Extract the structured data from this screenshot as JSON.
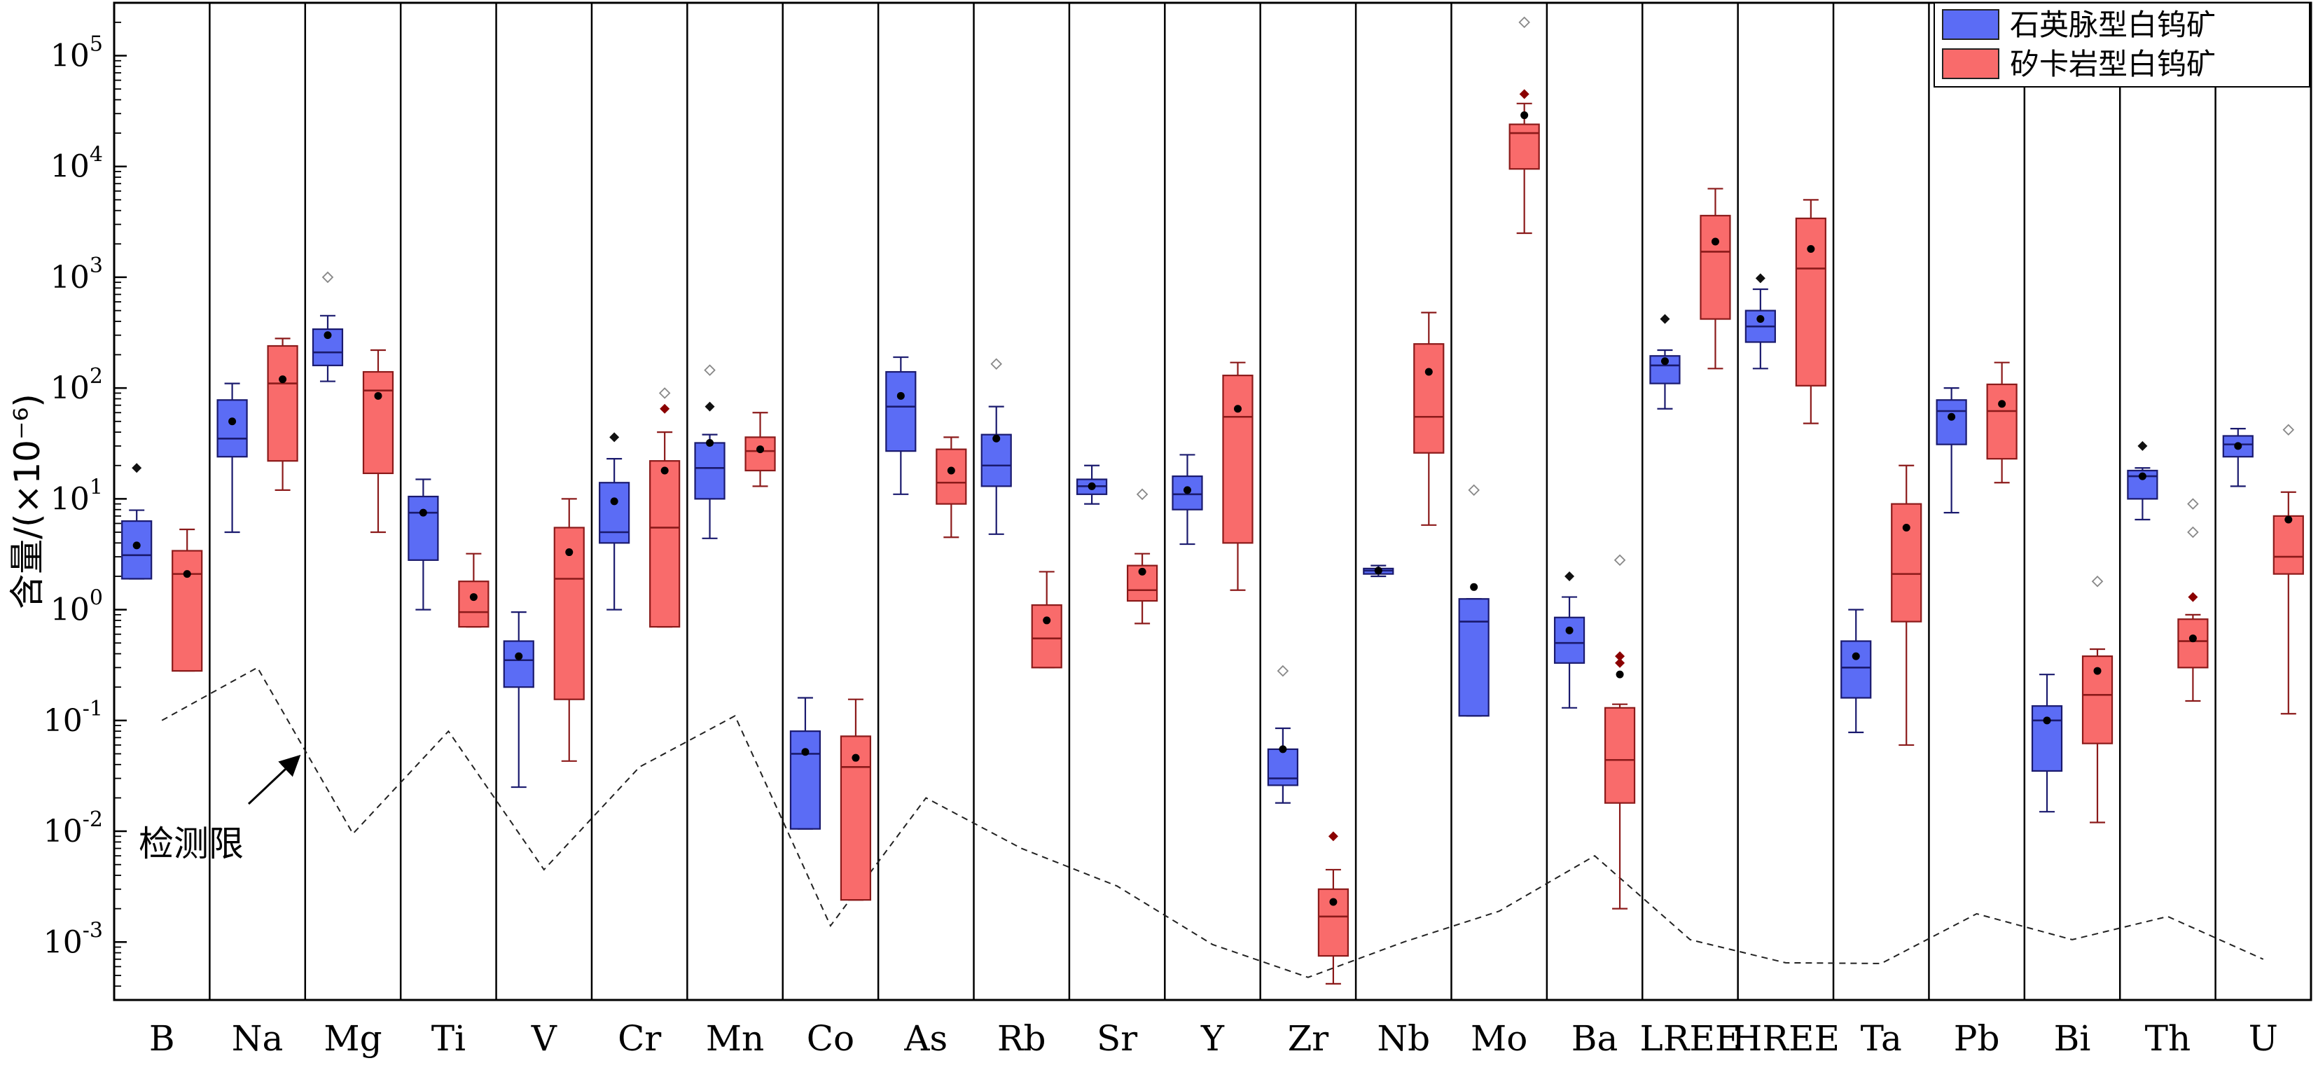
{
  "chart_data": {
    "type": "box",
    "ylabel": "含量/(×10⁻⁶)",
    "y_scale": "log",
    "ylim": [
      0.0003,
      300000
    ],
    "y_ticks": [
      0.001,
      0.01,
      0.1,
      1,
      10,
      100,
      1000,
      10000,
      100000
    ],
    "y_tick_labels": [
      {
        "base": "10",
        "exp": "-3"
      },
      {
        "base": "10",
        "exp": "-2"
      },
      {
        "base": "10",
        "exp": "-1"
      },
      {
        "base": "10",
        "exp": "0"
      },
      {
        "base": "10",
        "exp": "1"
      },
      {
        "base": "10",
        "exp": "2"
      },
      {
        "base": "10",
        "exp": "3"
      },
      {
        "base": "10",
        "exp": "4"
      },
      {
        "base": "10",
        "exp": "5"
      }
    ],
    "categories": [
      "B",
      "Na",
      "Mg",
      "Ti",
      "V",
      "Cr",
      "Mn",
      "Co",
      "As",
      "Rb",
      "Sr",
      "Y",
      "Zr",
      "Nb",
      "Mo",
      "Ba",
      "LREE",
      "HREE",
      "Ta",
      "Pb",
      "Bi",
      "Th",
      "U"
    ],
    "legend": {
      "placement": "top-right",
      "entries": [
        {
          "label": "石英脉型白钨矿",
          "color": "#5b6cf5"
        },
        {
          "label": "矽卡岩型白钨矿",
          "color": "#f96b6b"
        }
      ]
    },
    "colors": {
      "quartz_fill": "#5b6cf5",
      "quartz_line": "#1a1a6e",
      "skarn_fill": "#f96b6b",
      "skarn_line": "#8b1a1a",
      "outlier": "#888888",
      "skarn_mean_dark": "#8b0000"
    },
    "series": [
      {
        "name": "石英脉型白钨矿",
        "boxes": [
          {
            "category": "B",
            "min": 1.9,
            "q1": 1.9,
            "median": 3.1,
            "q3": 6.3,
            "max": 7.9,
            "mean": 3.8,
            "extreme_max": [
              19
            ]
          },
          {
            "category": "Na",
            "min": 5,
            "q1": 24,
            "median": 35,
            "q3": 78,
            "max": 110,
            "mean": 50,
            "extreme_max": []
          },
          {
            "category": "Mg",
            "min": 115,
            "q1": 160,
            "median": 210,
            "q3": 340,
            "max": 450,
            "mean": 300,
            "outliers": [
              1000
            ]
          },
          {
            "category": "Ti",
            "min": 1,
            "q1": 2.8,
            "median": 7.5,
            "q3": 10.5,
            "max": 15,
            "mean": 7.5,
            "outliers": []
          },
          {
            "category": "V",
            "min": 0.025,
            "q1": 0.2,
            "median": 0.35,
            "q3": 0.52,
            "max": 0.95,
            "mean": 0.38,
            "outliers": []
          },
          {
            "category": "Cr",
            "min": 1,
            "q1": 4,
            "median": 5,
            "q3": 14,
            "max": 23,
            "mean": 9.5,
            "extreme_max": [
              36
            ]
          },
          {
            "category": "Mn",
            "min": 4.4,
            "q1": 10,
            "median": 19,
            "q3": 32,
            "max": 38,
            "mean": 32,
            "extreme_max": [
              68
            ],
            "outliers": [
              145
            ]
          },
          {
            "category": "Co",
            "min": 0.0105,
            "q1": 0.0105,
            "median": 0.05,
            "q3": 0.08,
            "max": 0.16,
            "mean": 0.052,
            "outliers": []
          },
          {
            "category": "As",
            "min": 11,
            "q1": 27,
            "median": 68,
            "q3": 140,
            "max": 190,
            "mean": 85,
            "outliers": []
          },
          {
            "category": "Rb",
            "min": 4.8,
            "q1": 13,
            "median": 20,
            "q3": 38,
            "max": 68,
            "mean": 35,
            "outliers": [
              165
            ]
          },
          {
            "category": "Sr",
            "min": 9,
            "q1": 11,
            "median": 13,
            "q3": 15,
            "max": 20,
            "mean": 13,
            "outliers": []
          },
          {
            "category": "Y",
            "min": 3.9,
            "q1": 8,
            "median": 11,
            "q3": 16,
            "max": 25,
            "mean": 12,
            "outliers": []
          },
          {
            "category": "Zr",
            "min": 0.018,
            "q1": 0.026,
            "median": 0.03,
            "q3": 0.055,
            "max": 0.085,
            "mean": 0.055,
            "outliers": [
              0.28
            ]
          },
          {
            "category": "Nb",
            "min": 2,
            "q1": 2.1,
            "median": 2.25,
            "q3": 2.35,
            "max": 2.5,
            "mean": 2.25,
            "outliers": []
          },
          {
            "category": "Mo",
            "min": 0.11,
            "q1": 0.11,
            "median": 0.78,
            "q3": 1.25,
            "max": 1.25,
            "mean": 1.6,
            "outliers": [
              12
            ]
          },
          {
            "category": "Ba",
            "min": 0.13,
            "q1": 0.33,
            "median": 0.5,
            "q3": 0.85,
            "max": 1.3,
            "mean": 0.65,
            "extreme_max": [
              2
            ],
            "outliers": []
          },
          {
            "category": "LREE",
            "min": 65,
            "q1": 110,
            "median": 160,
            "q3": 195,
            "max": 220,
            "mean": 175,
            "extreme_max": [
              420
            ]
          },
          {
            "category": "HREE",
            "min": 150,
            "q1": 260,
            "median": 360,
            "q3": 500,
            "max": 780,
            "mean": 420,
            "extreme_max": [
              980
            ]
          },
          {
            "category": "Ta",
            "min": 0.078,
            "q1": 0.16,
            "median": 0.3,
            "q3": 0.52,
            "max": 1,
            "mean": 0.38,
            "outliers": []
          },
          {
            "category": "Pb",
            "min": 7.5,
            "q1": 31,
            "median": 62,
            "q3": 78,
            "max": 100,
            "mean": 55,
            "outliers": []
          },
          {
            "category": "Bi",
            "min": 0.015,
            "q1": 0.035,
            "median": 0.1,
            "q3": 0.135,
            "max": 0.26,
            "mean": 0.1,
            "outliers": []
          },
          {
            "category": "Th",
            "min": 6.5,
            "q1": 10,
            "median": 16,
            "q3": 18,
            "max": 19,
            "mean": 16,
            "extreme_max": [
              30
            ]
          },
          {
            "category": "U",
            "min": 13,
            "q1": 24,
            "median": 31,
            "q3": 37,
            "max": 43,
            "mean": 30,
            "outliers": []
          }
        ]
      },
      {
        "name": "矽卡岩型白钨矿",
        "boxes": [
          {
            "category": "B",
            "min": 0.28,
            "q1": 0.28,
            "median": 2.1,
            "q3": 3.4,
            "max": 5.3,
            "mean": 2.1,
            "outliers": []
          },
          {
            "category": "Na",
            "min": 12,
            "q1": 22,
            "median": 110,
            "q3": 240,
            "max": 280,
            "mean": 120,
            "outliers": []
          },
          {
            "category": "Mg",
            "min": 5,
            "q1": 17,
            "median": 95,
            "q3": 140,
            "max": 220,
            "mean": 85,
            "outliers": []
          },
          {
            "category": "Ti",
            "min": 0.7,
            "q1": 0.7,
            "median": 0.95,
            "q3": 1.8,
            "max": 3.2,
            "mean": 1.3,
            "outliers": []
          },
          {
            "category": "V",
            "min": 0.043,
            "q1": 0.155,
            "median": 1.9,
            "q3": 5.5,
            "max": 10,
            "mean": 3.3,
            "outliers": []
          },
          {
            "category": "Cr",
            "min": 0.7,
            "q1": 0.7,
            "median": 5.5,
            "q3": 22,
            "max": 40,
            "mean": 18,
            "extreme_max": [
              65
            ],
            "outliers": [
              90
            ]
          },
          {
            "category": "Mn",
            "min": 13,
            "q1": 18,
            "median": 27,
            "q3": 36,
            "max": 60,
            "mean": 28,
            "outliers": []
          },
          {
            "category": "Co",
            "min": 0.0024,
            "q1": 0.0024,
            "median": 0.038,
            "q3": 0.072,
            "max": 0.155,
            "mean": 0.046,
            "outliers": []
          },
          {
            "category": "As",
            "min": 4.5,
            "q1": 9,
            "median": 14,
            "q3": 28,
            "max": 36,
            "mean": 18,
            "outliers": []
          },
          {
            "category": "Rb",
            "min": 0.3,
            "q1": 0.3,
            "median": 0.55,
            "q3": 1.1,
            "max": 2.2,
            "mean": 0.8,
            "outliers": []
          },
          {
            "category": "Sr",
            "min": 0.75,
            "q1": 1.2,
            "median": 1.5,
            "q3": 2.5,
            "max": 3.2,
            "mean": 2.2,
            "outliers": [
              11
            ]
          },
          {
            "category": "Y",
            "min": 1.5,
            "q1": 4,
            "median": 55,
            "q3": 130,
            "max": 170,
            "mean": 65,
            "outliers": []
          },
          {
            "category": "Zr",
            "min": 0.00042,
            "q1": 0.00075,
            "median": 0.0017,
            "q3": 0.003,
            "max": 0.0045,
            "mean": 0.0023,
            "extreme_max": [
              0.009
            ]
          },
          {
            "category": "Nb",
            "min": 5.8,
            "q1": 26,
            "median": 55,
            "q3": 250,
            "max": 480,
            "mean": 140,
            "outliers": []
          },
          {
            "category": "Mo",
            "min": 2500,
            "q1": 9500,
            "median": 20000,
            "q3": 24000,
            "max": 37000,
            "mean": 29000,
            "extreme_max": [
              45000
            ],
            "outliers": [
              200000
            ]
          },
          {
            "category": "Ba",
            "min": 0.002,
            "q1": 0.018,
            "median": 0.044,
            "q3": 0.13,
            "max": 0.14,
            "mean": 0.26,
            "extreme_max": [
              0.33,
              0.38
            ],
            "outliers": [
              2.8
            ]
          },
          {
            "category": "LREE",
            "min": 150,
            "q1": 420,
            "median": 1700,
            "q3": 3600,
            "max": 6300,
            "mean": 2100,
            "outliers": []
          },
          {
            "category": "HREE",
            "min": 48,
            "q1": 105,
            "median": 1200,
            "q3": 3400,
            "max": 5000,
            "mean": 1800,
            "outliers": []
          },
          {
            "category": "Ta",
            "min": 0.06,
            "q1": 0.78,
            "median": 2.1,
            "q3": 9,
            "max": 20,
            "mean": 5.5,
            "outliers": []
          },
          {
            "category": "Pb",
            "min": 14,
            "q1": 23,
            "median": 62,
            "q3": 108,
            "max": 170,
            "mean": 72,
            "outliers": []
          },
          {
            "category": "Bi",
            "min": 0.012,
            "q1": 0.062,
            "median": 0.17,
            "q3": 0.38,
            "max": 0.44,
            "mean": 0.28,
            "outliers": [
              1.8
            ]
          },
          {
            "category": "Th",
            "min": 0.15,
            "q1": 0.3,
            "median": 0.52,
            "q3": 0.82,
            "max": 0.9,
            "mean": 0.55,
            "extreme_max": [
              1.3
            ],
            "outliers": [
              5,
              9
            ]
          },
          {
            "category": "U",
            "min": 0.115,
            "q1": 2.1,
            "median": 3,
            "q3": 7,
            "max": 11.5,
            "mean": 6.5,
            "outliers": [
              42
            ]
          }
        ]
      }
    ],
    "detection_limit": {
      "label": "检测限",
      "values": [
        0.1,
        0.3,
        0.0095,
        0.08,
        0.0045,
        0.038,
        0.11,
        0.0014,
        0.02,
        0.007,
        0.0032,
        0.00095,
        0.00048,
        0.001,
        0.0019,
        0.006,
        0.00105,
        0.00065,
        0.00064,
        0.0018,
        0.00105,
        0.0017,
        0.0007
      ],
      "annotation_target_value": 0.09
    }
  }
}
